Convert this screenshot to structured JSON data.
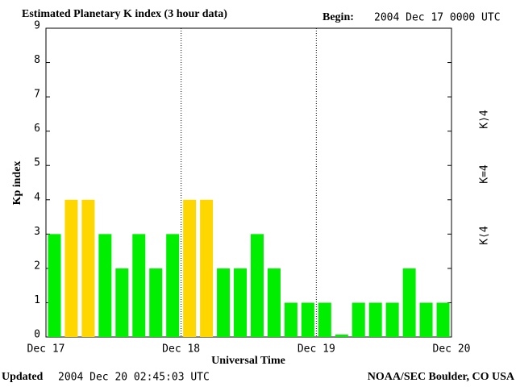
{
  "chart_data": {
    "type": "bar",
    "title": "Estimated Planetary K index (3 hour data)",
    "begin_label": "Begin:",
    "begin": "2004 Dec 17 0000 UTC",
    "y_label": "Kp index",
    "x_label": "Universal Time",
    "updated_label": "Updated",
    "updated": "2004 Dec 20 02:45:03 UTC",
    "source": "NOAA/SEC Boulder, CO USA",
    "day_labels": [
      "Dec 17",
      "Dec 18",
      "Dec 19",
      "Dec 20"
    ],
    "values": [
      3,
      4,
      4,
      3,
      2,
      3,
      2,
      3,
      4,
      4,
      2,
      2,
      3,
      2,
      1,
      1,
      1,
      0,
      1,
      1,
      1,
      2,
      1,
      1
    ],
    "threshold": 4,
    "legend": [
      {
        "label": "K⟨4",
        "color": "#00ee00"
      },
      {
        "label": "K=4",
        "color": "#ffd700"
      },
      {
        "label": "K⟩4",
        "color": "#ff2200"
      }
    ],
    "ylim": [
      0,
      9
    ],
    "yticks": [
      0,
      1,
      2,
      3,
      4,
      5,
      6,
      7,
      8,
      9
    ]
  }
}
